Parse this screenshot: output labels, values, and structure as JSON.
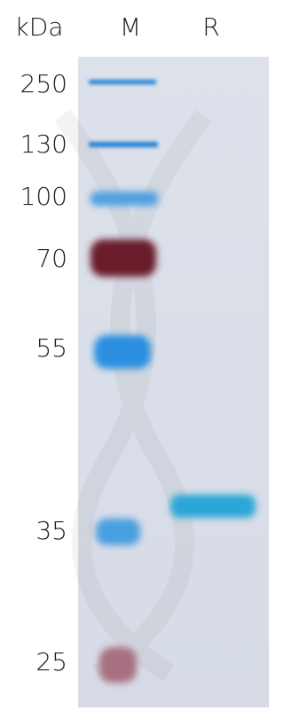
{
  "header": {
    "unit": "kDa",
    "lanes": [
      "M",
      "R"
    ]
  },
  "markers": [
    250,
    130,
    100,
    70,
    55,
    35,
    25
  ]
}
